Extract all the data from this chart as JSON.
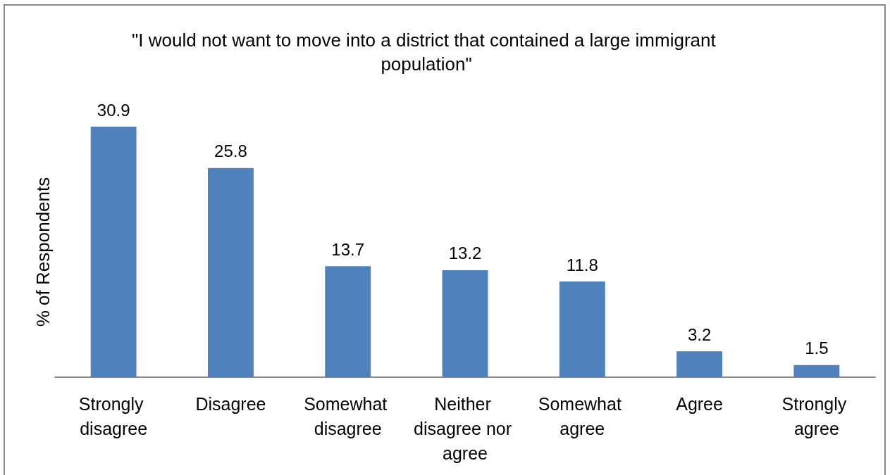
{
  "chart_data": {
    "type": "bar",
    "title": "\"I would not want to move into a district that contained a large immigrant population\"",
    "ylabel": "% of Respondents",
    "categories": [
      "Strongly disagree",
      "Disagree",
      "Somewhat disagree",
      "Neither disagree nor agree",
      "Somewhat agree",
      "Agree",
      "Strongly agree"
    ],
    "values": [
      30.9,
      25.8,
      13.7,
      13.2,
      11.8,
      3.2,
      1.5
    ],
    "color": "#4f81bd",
    "data_labels": true,
    "tick_labels": "x"
  }
}
